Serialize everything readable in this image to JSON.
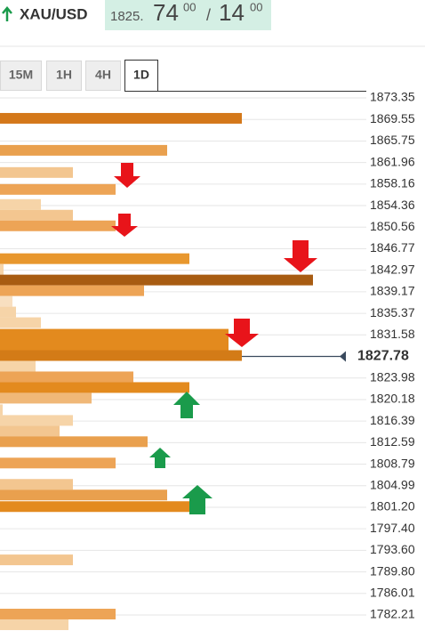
{
  "header": {
    "symbol": "XAU/USD",
    "bid_main": "1825.",
    "bid_big": "74",
    "bid_sup": "00",
    "separator": "/",
    "ask_big": "14",
    "ask_sup": "00"
  },
  "tabs": [
    "15M",
    "1H",
    "4H",
    "1D"
  ],
  "levels": [
    "1873.35",
    "1869.55",
    "1865.75",
    "1861.96",
    "1858.16",
    "1854.36",
    "1850.56",
    "1846.77",
    "1842.97",
    "1839.17",
    "1835.37",
    "1831.58",
    "1827.78",
    "1823.98",
    "1820.18",
    "1816.39",
    "1812.59",
    "1808.79",
    "1804.99",
    "1801.20",
    "1797.40",
    "1793.60",
    "1789.80",
    "1786.01",
    "1782.21"
  ],
  "current_price": "1827.78",
  "bars": [
    {
      "level": 1869.75,
      "strength": 68,
      "color": "#d4781a"
    },
    {
      "level": 1864.11,
      "strength": 47,
      "color": "#e9a04e"
    },
    {
      "level": 1860.2,
      "strength": 20.5,
      "color": "#f3c690"
    },
    {
      "level": 1857.22,
      "strength": 32.5,
      "color": "#eda456"
    },
    {
      "level": 1854.56,
      "strength": 11.5,
      "color": "#f6d4a8"
    },
    {
      "level": 1852.68,
      "strength": 20.5,
      "color": "#f3c690"
    },
    {
      "level": 1850.8,
      "strength": 32.5,
      "color": "#eda456"
    },
    {
      "level": 1845.01,
      "strength": 53.25,
      "color": "#e8972e"
    },
    {
      "level": 1843.13,
      "strength": 1,
      "color": "#f6d4a8"
    },
    {
      "level": 1841.25,
      "strength": 88,
      "color": "#a85c12"
    },
    {
      "level": 1839.37,
      "strength": 40.5,
      "color": "#eda456"
    },
    {
      "level": 1837.49,
      "strength": 3.5,
      "color": "#f8dfc0"
    },
    {
      "level": 1835.61,
      "strength": 4.5,
      "color": "#f6d4a8"
    },
    {
      "level": 1833.73,
      "strength": 11.5,
      "color": "#f6d4a8"
    },
    {
      "level": 1831.69,
      "strength": 64.25,
      "color": "#e38a1e"
    },
    {
      "level": 1829.82,
      "strength": 64.25,
      "color": "#e38a1e"
    },
    {
      "level": 1827.94,
      "strength": 68,
      "color": "#d37b17"
    },
    {
      "level": 1826.06,
      "strength": 10,
      "color": "#f6d4a8"
    },
    {
      "level": 1824.18,
      "strength": 37.5,
      "color": "#eda456"
    },
    {
      "level": 1822.3,
      "strength": 53.25,
      "color": "#e38a1e"
    },
    {
      "level": 1820.42,
      "strength": 25.75,
      "color": "#f0b878"
    },
    {
      "level": 1818.38,
      "strength": 0.75,
      "color": "#f6d4a8"
    },
    {
      "level": 1816.5,
      "strength": 20.5,
      "color": "#f6d4a8"
    },
    {
      "level": 1814.62,
      "strength": 16.75,
      "color": "#f3c690"
    },
    {
      "level": 1812.75,
      "strength": 41.5,
      "color": "#e9a04e"
    },
    {
      "level": 1808.99,
      "strength": 32.5,
      "color": "#eda456"
    },
    {
      "level": 1805.23,
      "strength": 20.5,
      "color": "#f3c690"
    },
    {
      "level": 1803.35,
      "strength": 47,
      "color": "#e9a04e"
    },
    {
      "level": 1801.31,
      "strength": 53.25,
      "color": "#e38a1e"
    },
    {
      "level": 1791.92,
      "strength": 20.5,
      "color": "#f3c690"
    },
    {
      "level": 1782.37,
      "strength": 32.5,
      "color": "#eda456"
    },
    {
      "level": 1780.49,
      "strength": 19.25,
      "color": "#f6d4a8"
    }
  ]
}
